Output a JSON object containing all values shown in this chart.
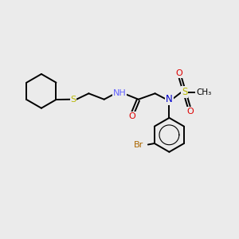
{
  "bg_color": "#ebebeb",
  "bond_color": "#000000",
  "bond_lw": 1.4,
  "atom_colors": {
    "S_thio": "#b8b800",
    "N_amine": "#6060ff",
    "N_blue": "#0000cc",
    "O": "#dd0000",
    "Br": "#aa6600",
    "C": "#000000"
  },
  "fig_size": [
    3.0,
    3.0
  ],
  "dpi": 100,
  "xlim": [
    0,
    10
  ],
  "ylim": [
    0,
    10
  ]
}
